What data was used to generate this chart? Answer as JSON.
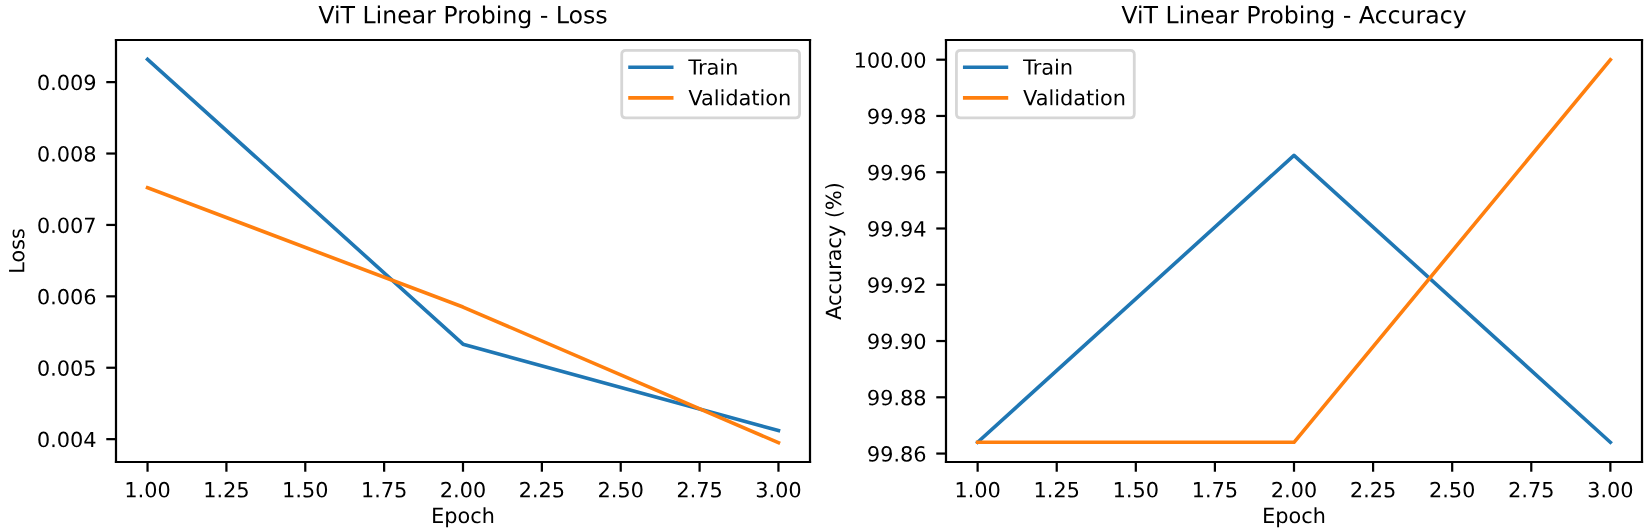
{
  "chart_data": [
    {
      "type": "line",
      "title": "ViT Linear Probing - Loss",
      "xlabel": "Epoch",
      "ylabel": "Loss",
      "x": [
        1,
        2,
        3
      ],
      "series": [
        {
          "name": "Train",
          "color": "#1f77b4",
          "values": [
            0.00932,
            0.00533,
            0.00412
          ]
        },
        {
          "name": "Validation",
          "color": "#ff7f0e",
          "values": [
            0.00752,
            0.00585,
            0.00395
          ]
        }
      ],
      "xlim": [
        0.9,
        3.1
      ],
      "xticks": [
        {
          "value": 1,
          "label": "1.00"
        },
        {
          "value": 1.25,
          "label": "1.25"
        },
        {
          "value": 1.5,
          "label": "1.50"
        },
        {
          "value": 1.75,
          "label": "1.75"
        },
        {
          "value": 2,
          "label": "2.00"
        },
        {
          "value": 2.25,
          "label": "2.25"
        },
        {
          "value": 2.5,
          "label": "2.50"
        },
        {
          "value": 2.75,
          "label": "2.75"
        },
        {
          "value": 3,
          "label": "3.00"
        }
      ],
      "ylim": [
        0.00368,
        0.00959
      ],
      "yticks": [
        0.004,
        0.005,
        0.006,
        0.007,
        0.008,
        0.009
      ],
      "legend": "top right",
      "grid": false,
      "line_style": "solid"
    },
    {
      "type": "line",
      "title": "ViT Linear Probing - Accuracy",
      "xlabel": "Epoch",
      "ylabel": "Accuracy (%)",
      "x": [
        1,
        2,
        3
      ],
      "series": [
        {
          "name": "Train",
          "color": "#1f77b4",
          "values": [
            99.864,
            99.966,
            99.864
          ]
        },
        {
          "name": "Validation",
          "color": "#ff7f0e",
          "values": [
            99.864,
            99.864,
            100.0
          ]
        }
      ],
      "xlim": [
        0.9,
        3.1
      ],
      "xticks": [
        {
          "value": 1,
          "label": "1.00"
        },
        {
          "value": 1.25,
          "label": "1.25"
        },
        {
          "value": 1.5,
          "label": "1.50"
        },
        {
          "value": 1.75,
          "label": "1.75"
        },
        {
          "value": 2,
          "label": "2.00"
        },
        {
          "value": 2.25,
          "label": "2.25"
        },
        {
          "value": 2.5,
          "label": "2.50"
        },
        {
          "value": 2.75,
          "label": "2.75"
        },
        {
          "value": 3,
          "label": "3.00"
        }
      ],
      "ylim": [
        99.857,
        100.007
      ],
      "yticks": [
        {
          "value": 99.86,
          "label": "99.86"
        },
        {
          "value": 99.88,
          "label": "99.88"
        },
        {
          "value": 99.9,
          "label": "99.90"
        },
        {
          "value": 99.92,
          "label": "99.92"
        },
        {
          "value": 99.94,
          "label": "99.94"
        },
        {
          "value": 99.96,
          "label": "99.96"
        },
        {
          "value": 99.98,
          "label": "99.98"
        },
        {
          "value": 100,
          "label": "100.00"
        }
      ],
      "legend": "top left",
      "grid": false,
      "line_style": "solid"
    }
  ]
}
